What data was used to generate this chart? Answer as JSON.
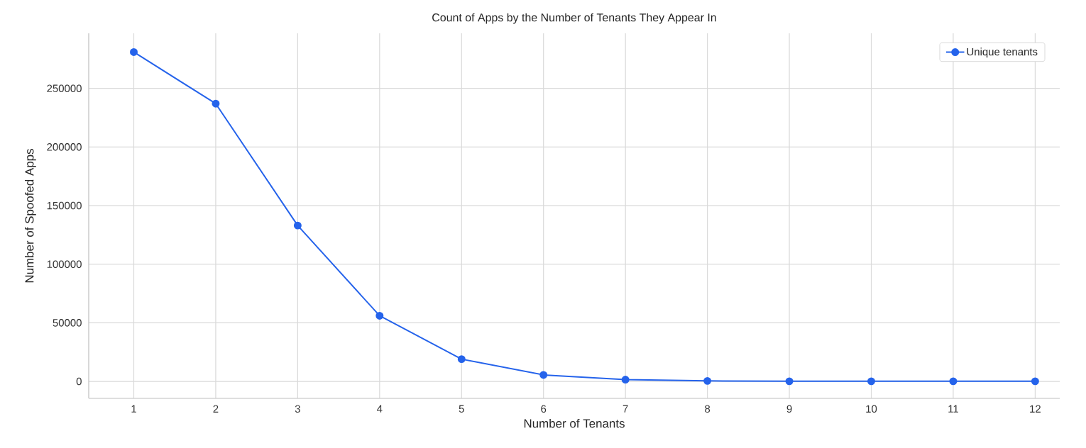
{
  "chart_data": {
    "type": "line",
    "title": "Count of Apps by the Number of Tenants They Appear In",
    "xlabel": "Number of Tenants",
    "ylabel": "Number of Spoofed Apps",
    "x": [
      1,
      2,
      3,
      4,
      5,
      6,
      7,
      8,
      9,
      10,
      11,
      12
    ],
    "series": [
      {
        "name": "Unique tenants",
        "color": "#2563eb",
        "values": [
          281000,
          237000,
          133000,
          56000,
          19000,
          5500,
          1500,
          400,
          100,
          100,
          100,
          100
        ]
      }
    ],
    "xlim": [
      0.45,
      12.3
    ],
    "ylim": [
      -14500,
      297000
    ],
    "xticks": [
      1,
      2,
      3,
      4,
      5,
      6,
      7,
      8,
      9,
      10,
      11,
      12
    ],
    "yticks": [
      0,
      50000,
      100000,
      150000,
      200000,
      250000
    ],
    "grid": true,
    "legend": "top right",
    "marker": "circle",
    "line_style": "solid"
  }
}
